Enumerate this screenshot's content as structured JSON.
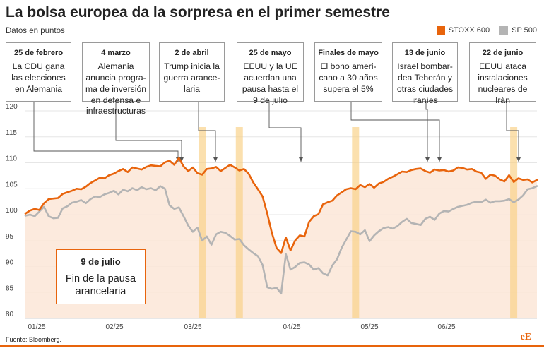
{
  "header": {
    "title": "La bolsa europea da la sorpresa en el primer semestre",
    "subtitle": "Datos en puntos"
  },
  "legend": [
    {
      "label": "STOXX 600",
      "color": "#e8640c"
    },
    {
      "label": "SP 500",
      "color": "#b4b4b4"
    }
  ],
  "events": [
    {
      "date": "25 de febrero",
      "text": "La CDU gana las elecciones en Alemania"
    },
    {
      "date": "4 marzo",
      "text": "Alemania anuncia progra-ma de inversión en defensa e infraestructuras"
    },
    {
      "date": "2 de abril",
      "text": "Trump inicia la guerra arance-laria"
    },
    {
      "date": "25 de mayo",
      "text": "EEUU y la UE acuerdan una pausa hasta el 9 de julio"
    },
    {
      "date": "Finales de mayo",
      "text": "El bono ameri-cano a 30 años supera el 5%"
    },
    {
      "date": "13 de junio",
      "text": "Israel bombar-dea Teherán y otras ciudades iraníes"
    },
    {
      "date": "22 de junio",
      "text": "EEUU ataca instalaciones nucleares de Irán"
    }
  ],
  "callout": {
    "date": "9 de julio",
    "text": "Fin de la pausa arancelaria"
  },
  "footer": {
    "source": "Fuente: Bloomberg.",
    "brand": "eE"
  },
  "chart_data": {
    "type": "line",
    "ylim": [
      80,
      120
    ],
    "yticks": [
      80,
      85,
      90,
      95,
      100,
      105,
      110,
      115,
      120
    ],
    "xtick_labels": [
      "01/25",
      "02/25",
      "03/25",
      "04/25",
      "05/25",
      "06/25"
    ],
    "grid": true,
    "series": [
      {
        "name": "STOXX 600",
        "color": "#e8640c",
        "values": [
          100.2,
          100.8,
          101.1,
          100.9,
          102.2,
          103.0,
          103.1,
          103.2,
          104.0,
          104.3,
          104.6,
          105.0,
          104.9,
          105.4,
          106.1,
          106.6,
          107.1,
          107.0,
          107.6,
          107.9,
          108.4,
          108.8,
          108.2,
          109.1,
          108.9,
          108.7,
          109.2,
          109.5,
          109.4,
          109.3,
          110.1,
          110.4,
          109.6,
          110.9,
          109.3,
          108.4,
          109.1,
          108.0,
          107.7,
          108.8,
          108.9,
          109.2,
          108.4,
          109.0,
          109.6,
          109.1,
          108.5,
          108.8,
          107.9,
          106.2,
          104.9,
          103.5,
          100.2,
          96.5,
          93.6,
          92.6,
          95.6,
          93.1,
          95.0,
          96.0,
          95.8,
          98.6,
          99.7,
          100.1,
          102.0,
          102.4,
          102.7,
          103.7,
          104.3,
          104.9,
          105.1,
          104.9,
          105.7,
          105.3,
          105.9,
          105.2,
          106.0,
          106.3,
          106.9,
          107.3,
          107.8,
          108.3,
          108.2,
          108.6,
          108.8,
          108.9,
          108.4,
          108.1,
          108.7,
          108.5,
          108.6,
          108.3,
          108.5,
          109.1,
          109.0,
          108.7,
          108.8,
          108.3,
          108.1,
          106.9,
          107.7,
          107.5,
          106.8,
          106.4,
          107.6,
          106.3,
          107.0,
          106.7,
          106.8,
          106.2,
          106.7
        ]
      },
      {
        "name": "SP 500",
        "color": "#b4b4b4",
        "values": [
          99.8,
          100.0,
          99.7,
          100.6,
          101.5,
          99.7,
          99.3,
          99.4,
          101.2,
          101.6,
          102.3,
          102.5,
          102.8,
          102.2,
          103.0,
          103.5,
          103.4,
          103.9,
          104.2,
          104.6,
          103.9,
          104.8,
          104.5,
          105.1,
          104.7,
          105.3,
          104.9,
          105.1,
          104.7,
          105.5,
          105.0,
          101.8,
          101.1,
          101.4,
          99.7,
          97.9,
          96.7,
          97.5,
          95.0,
          95.8,
          94.2,
          96.2,
          96.7,
          96.5,
          95.9,
          95.2,
          95.3,
          94.1,
          93.3,
          92.6,
          92.0,
          90.3,
          86.0,
          85.7,
          85.9,
          84.8,
          92.4,
          89.4,
          89.9,
          90.7,
          90.8,
          90.4,
          89.4,
          89.7,
          88.7,
          88.3,
          90.2,
          91.4,
          93.6,
          95.2,
          96.8,
          96.7,
          96.2,
          97.0,
          94.9,
          96.0,
          96.8,
          97.4,
          97.6,
          97.3,
          97.8,
          98.6,
          99.2,
          98.4,
          98.2,
          98.0,
          99.2,
          99.6,
          99.0,
          100.2,
          100.7,
          100.6,
          101.1,
          101.5,
          101.7,
          101.9,
          102.3,
          102.5,
          102.4,
          102.9,
          102.3,
          102.6,
          102.6,
          102.7,
          103.0,
          102.4,
          102.9,
          103.7,
          104.9,
          105.1,
          105.5
        ]
      }
    ],
    "highlight_indices": [
      38,
      46,
      71,
      105
    ]
  }
}
